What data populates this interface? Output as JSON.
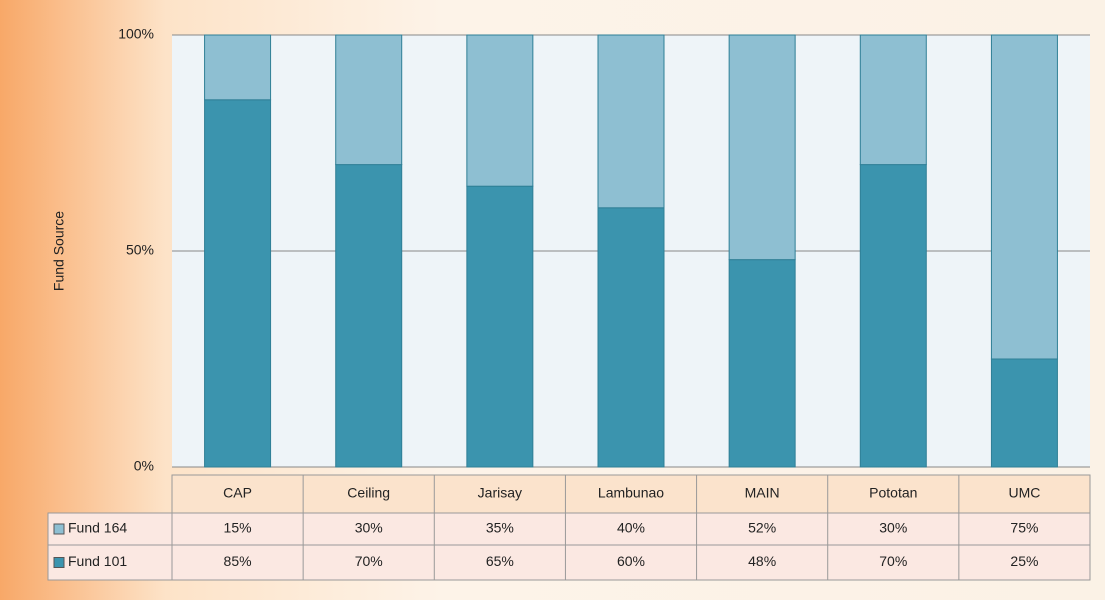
{
  "chart_data": {
    "type": "stacked_bar_100",
    "y_label": "Fund Source",
    "categories": [
      "CAP",
      "Ceiling",
      "Jarisay",
      "Lambunao",
      "MAIN",
      "Pototan",
      "UMC"
    ],
    "series": [
      {
        "name": "Fund 164",
        "color": "#8ebfd2",
        "values": [
          15,
          30,
          35,
          40,
          52,
          30,
          75
        ],
        "value_labels": [
          "15%",
          "30%",
          "35%",
          "40%",
          "52%",
          "30%",
          "75%"
        ]
      },
      {
        "name": "Fund 101",
        "color": "#3b94ae",
        "values": [
          85,
          70,
          65,
          60,
          48,
          70,
          25
        ],
        "value_labels": [
          "85%",
          "70%",
          "65%",
          "60%",
          "48%",
          "70%",
          "25%"
        ]
      }
    ],
    "ylim": [
      0,
      100
    ],
    "yticks": [
      {
        "value": 0,
        "label": "0%"
      },
      {
        "value": 50,
        "label": "50%"
      },
      {
        "value": 100,
        "label": "100%"
      }
    ],
    "grid": true
  }
}
